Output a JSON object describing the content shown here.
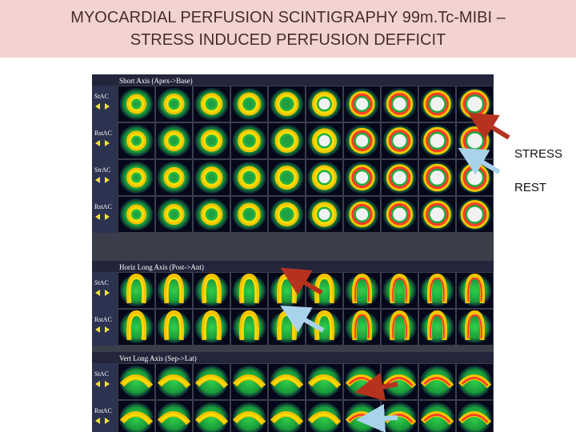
{
  "title": {
    "line1": "MYOCARDIAL PERFUSION SCINTIGRAPHY 99m.Tc-MIBI –",
    "line2": "STRESS INDUCED PERFUSION DEFFICIT"
  },
  "labels": {
    "stress": "STRESS",
    "rest": "REST"
  },
  "panel": {
    "sections": [
      {
        "heading": "Short Axis (Apex->Base)",
        "rows": [
          "StAC",
          "RstAC",
          "StrAC",
          "RstAC"
        ]
      },
      {
        "heading": "Horiz Long Axis (Post->Ant)",
        "rows": [
          "StAC",
          "RstAC"
        ]
      },
      {
        "heading": "Vert Long Axis (Sep->Lat)",
        "rows": [
          "StAC",
          "RstAC"
        ]
      }
    ]
  }
}
